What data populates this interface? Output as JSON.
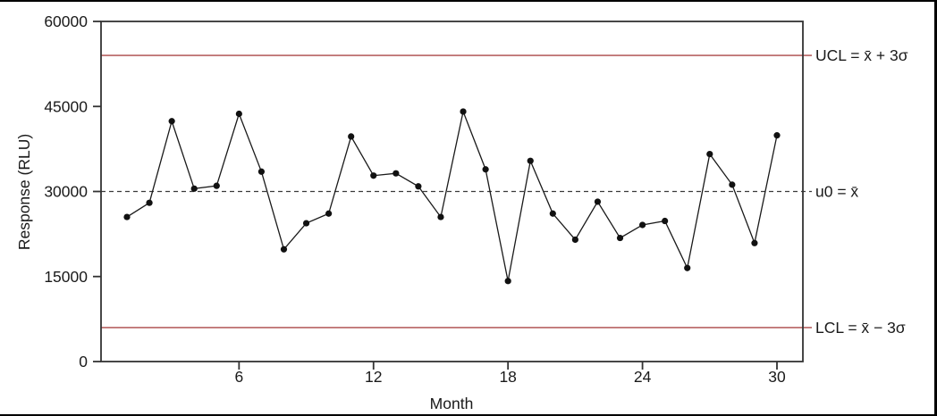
{
  "chart_data": {
    "type": "line",
    "title": "",
    "xlabel": "Month",
    "ylabel": "Response (RLU)",
    "x": [
      1,
      2,
      3,
      4,
      5,
      6,
      7,
      8,
      9,
      10,
      11,
      12,
      13,
      14,
      15,
      16,
      17,
      18,
      19,
      20,
      21,
      22,
      23,
      24,
      25,
      26,
      27,
      28,
      29,
      30
    ],
    "values": [
      25500,
      28000,
      42400,
      30500,
      31000,
      43700,
      33500,
      19800,
      24400,
      26100,
      39700,
      32800,
      33200,
      30900,
      25500,
      44100,
      33900,
      14200,
      35400,
      26100,
      21500,
      28200,
      21800,
      24100,
      24800,
      16500,
      36600,
      31200,
      20900,
      39900
    ],
    "xticks": [
      6,
      12,
      18,
      24,
      30
    ],
    "yticks": [
      0,
      15000,
      30000,
      45000,
      60000
    ],
    "xlim": [
      1,
      30
    ],
    "ylim": [
      0,
      60000
    ],
    "mean": 30000,
    "ucl": 54000,
    "lcl": 6000,
    "legend_position": "none",
    "grid": false,
    "annotations": {
      "ucl_label": "UCL = x̄ + 3σ",
      "center_label": "u0 = x̄",
      "lcl_label": "LCL = x̄ − 3σ"
    },
    "colors": {
      "series": "#1a1a1a",
      "point": "#111111",
      "limit_line": "#aa4646",
      "center_line": "#3a3a3a",
      "axis": "#333333",
      "background": "#ffffff",
      "frame_border": "#000000"
    }
  }
}
